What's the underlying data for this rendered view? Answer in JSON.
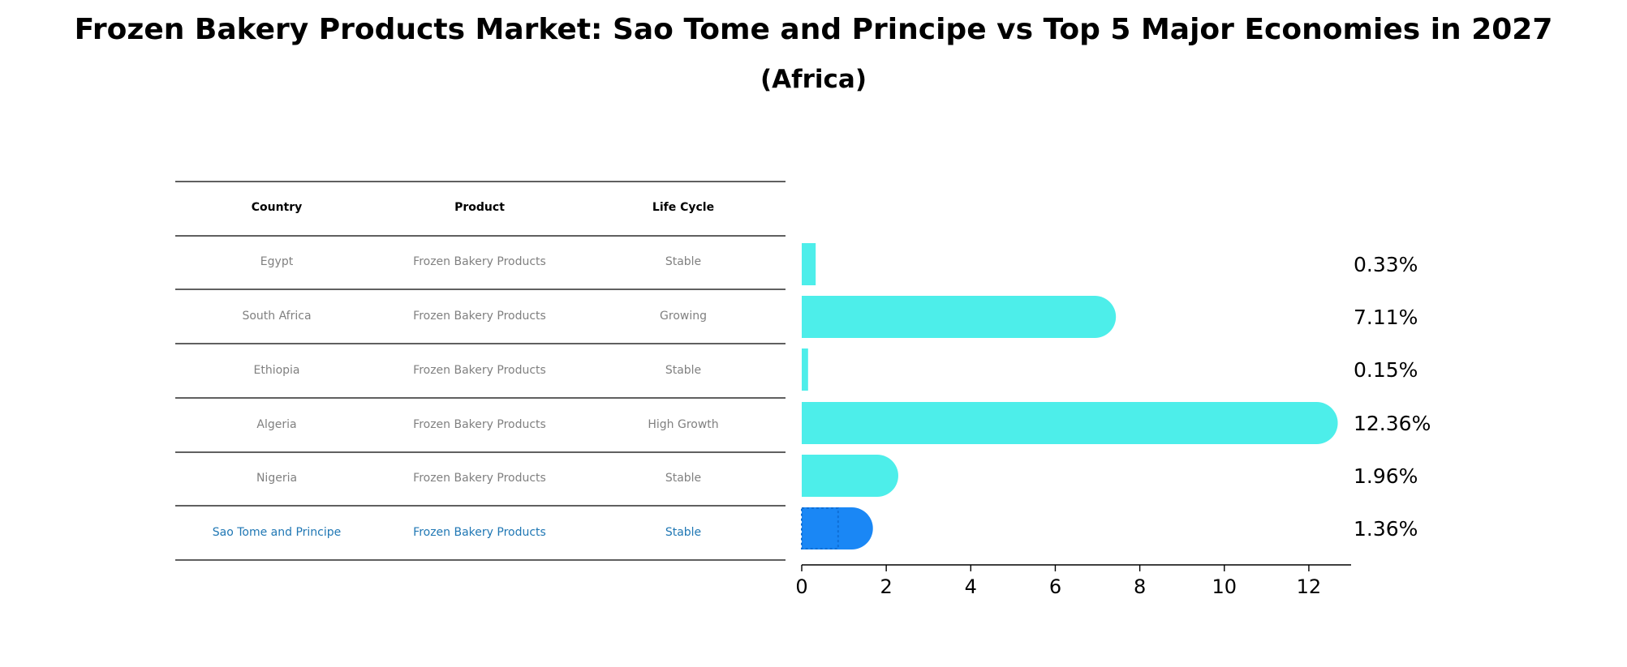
{
  "title": "Frozen Bakery Products Market: Sao Tome and Principe vs Top 5 Major Economies in 2027",
  "subtitle": "(Africa)",
  "table": {
    "headers": [
      "Country",
      "Product",
      "Life Cycle"
    ],
    "rows": [
      {
        "country": "Egypt",
        "product": "Frozen Bakery Products",
        "life_cycle": "Stable"
      },
      {
        "country": "South Africa",
        "product": "Frozen Bakery Products",
        "life_cycle": "Growing"
      },
      {
        "country": "Ethiopia",
        "product": "Frozen Bakery Products",
        "life_cycle": "Stable"
      },
      {
        "country": "Algeria",
        "product": "Frozen Bakery Products",
        "life_cycle": "High Growth"
      },
      {
        "country": "Nigeria",
        "product": "Frozen Bakery Products",
        "life_cycle": "Stable"
      },
      {
        "country": "Sao Tome and Principe",
        "product": "Frozen Bakery Products",
        "life_cycle": "Stable"
      }
    ]
  },
  "chart_data": {
    "type": "bar",
    "orientation": "horizontal",
    "categories": [
      "Egypt",
      "South Africa",
      "Ethiopia",
      "Algeria",
      "Nigeria",
      "Sao Tome and Principe"
    ],
    "values": [
      0.33,
      7.11,
      0.15,
      12.36,
      1.96,
      1.36
    ],
    "value_labels": [
      "0.33%",
      "7.11%",
      "0.15%",
      "12.36%",
      "1.96%",
      "1.36%"
    ],
    "xlim": [
      0,
      13
    ],
    "xticks": [
      0,
      2,
      4,
      6,
      8,
      10,
      12
    ],
    "xtick_labels": [
      "0",
      "2",
      "4",
      "6",
      "8",
      "10",
      "12"
    ],
    "highlight": "Sao Tome and Principe",
    "colors": {
      "default": "#4deeea",
      "highlight": "#1a87f5",
      "highlight_text": "#1f77b4"
    }
  }
}
